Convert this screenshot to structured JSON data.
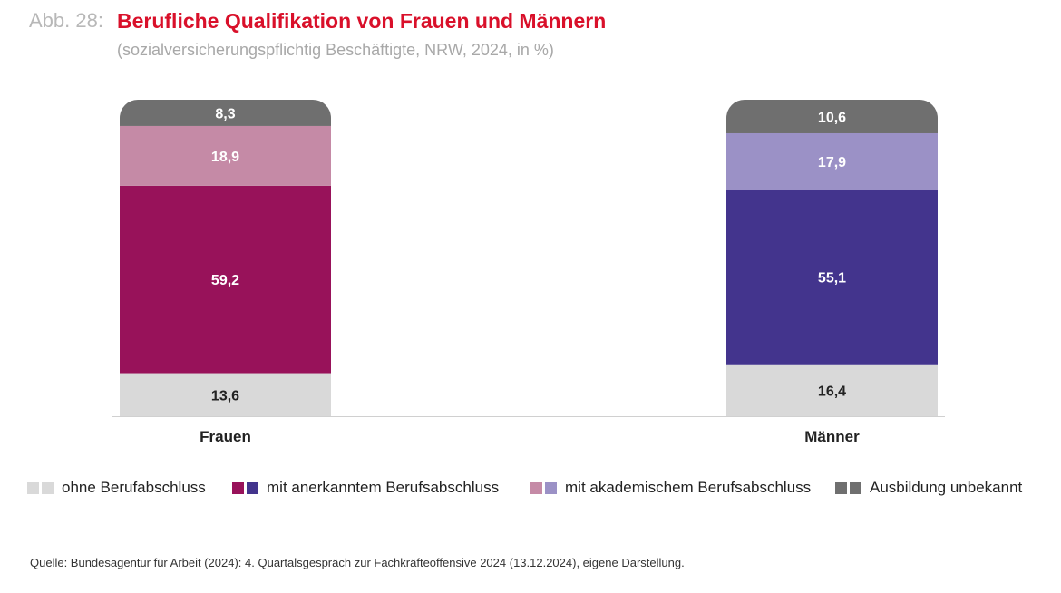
{
  "figure": {
    "label": "Abb. 28:",
    "title": "Berufliche Qualifikation von Frauen und Männern",
    "subtitle": "(sozialversicherungspflichtig Beschäftigte, NRW, 2024, in %)"
  },
  "chart_data": {
    "type": "bar",
    "stacked": true,
    "title": "Berufliche Qualifikation von Frauen und Männern",
    "subtitle": "(sozialversicherungspflichtig Beschäftigte, NRW, 2024, in %)",
    "categories": [
      "Frauen",
      "Männer"
    ],
    "series": [
      {
        "name": "ohne Berufabschluss",
        "values": [
          13.6,
          16.4
        ],
        "labels": [
          "13,6",
          "16,4"
        ],
        "colors": [
          "#d9d9d9",
          "#d9d9d9"
        ],
        "text_color": "#222222"
      },
      {
        "name": "mit anerkanntem Berufsabschluss",
        "values": [
          59.2,
          55.1
        ],
        "labels": [
          "59,2",
          "55,1"
        ],
        "colors": [
          "#98125a",
          "#43348d"
        ],
        "text_color": "#ffffff"
      },
      {
        "name": "mit akademischem Berufsabschluss",
        "values": [
          18.9,
          17.9
        ],
        "labels": [
          "18,9",
          "17,9"
        ],
        "colors": [
          "#c58aa6",
          "#9b91c6"
        ],
        "text_color": "#ffffff"
      },
      {
        "name": "Ausbildung unbekannt",
        "values": [
          8.3,
          10.6
        ],
        "labels": [
          "8,3",
          "10,6"
        ],
        "colors": [
          "#6f6f6f",
          "#6f6f6f"
        ],
        "text_color": "#ffffff"
      }
    ],
    "xlabel": "",
    "ylabel": "",
    "ylim": [
      0,
      100
    ],
    "grid": false,
    "legend_position": "bottom"
  },
  "legend": [
    {
      "label": "ohne Berufabschluss",
      "colors": [
        "#d9d9d9",
        "#d9d9d9"
      ]
    },
    {
      "label": "mit anerkanntem Berufsabschluss",
      "colors": [
        "#98125a",
        "#43348d"
      ]
    },
    {
      "label": "mit akademischem Berufsabschluss",
      "colors": [
        "#c58aa6",
        "#9b91c6"
      ]
    },
    {
      "label": "Ausbildung unbekannt",
      "colors": [
        "#6f6f6f",
        "#6f6f6f"
      ]
    }
  ],
  "source": "Quelle: Bundesagentur für Arbeit (2024): 4. Quartalsgespräch zur Fachkräfteoffensive 2024 (13.12.2024), eigene Darstellung."
}
